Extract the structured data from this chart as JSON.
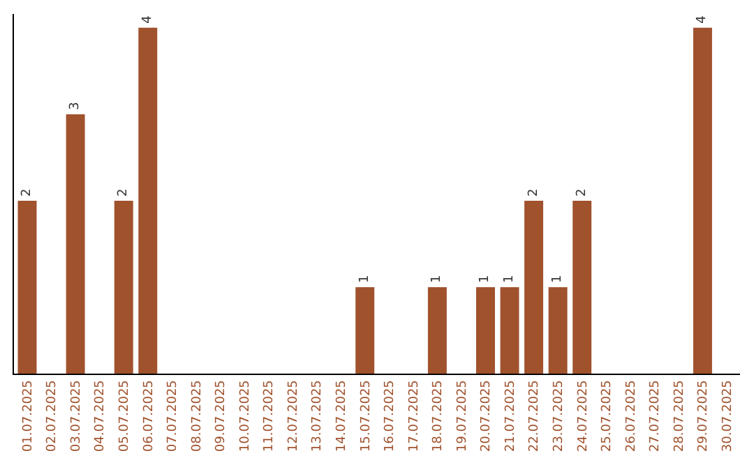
{
  "chart_data": {
    "type": "bar",
    "categories": [
      "01.07.2025",
      "02.07.2025",
      "03.07.2025",
      "04.07.2025",
      "05.07.2025",
      "06.07.2025",
      "07.07.2025",
      "08.07.2025",
      "09.07.2025",
      "10.07.2025",
      "11.07.2025",
      "12.07.2025",
      "13.07.2025",
      "14.07.2025",
      "15.07.2025",
      "16.07.2025",
      "17.07.2025",
      "18.07.2025",
      "19.07.2025",
      "20.07.2025",
      "21.07.2025",
      "22.07.2025",
      "23.07.2025",
      "24.07.2025",
      "25.07.2025",
      "26.07.2025",
      "27.07.2025",
      "28.07.2025",
      "29.07.2025",
      "30.07.2025"
    ],
    "values": [
      2,
      0,
      3,
      0,
      2,
      4,
      0,
      0,
      0,
      0,
      0,
      0,
      0,
      0,
      1,
      0,
      0,
      1,
      0,
      1,
      1,
      2,
      1,
      2,
      0,
      0,
      0,
      0,
      4,
      0
    ],
    "value_labels": [
      "2",
      null,
      "3",
      null,
      "2",
      "4",
      null,
      null,
      null,
      null,
      null,
      null,
      null,
      null,
      "1",
      null,
      null,
      "1",
      null,
      "1",
      "1",
      "2",
      "1",
      "2",
      null,
      null,
      null,
      null,
      "4",
      null
    ],
    "color": "#a0522d",
    "ylim": [
      0,
      4.16
    ],
    "tick_labels": "x",
    "legend": false
  }
}
